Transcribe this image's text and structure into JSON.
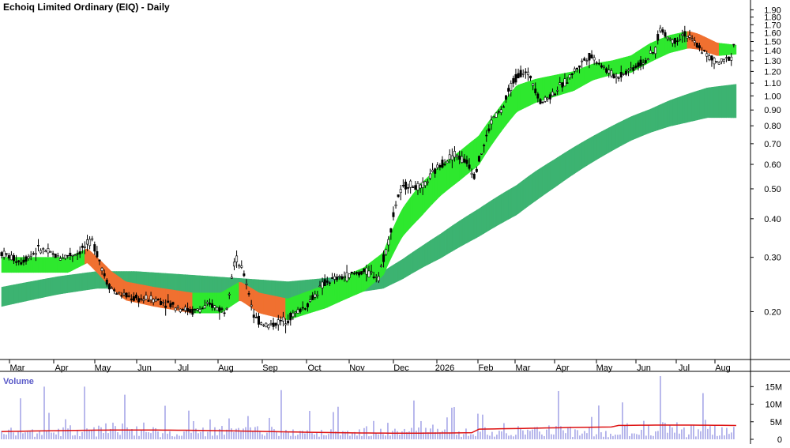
{
  "chart_data": {
    "type": "candlestick",
    "title": "Echoiq Limited Ordinary (EIQ) - Daily",
    "price_axis": {
      "ticks": [
        "0.20",
        "0.30",
        "0.40",
        "0.50",
        "0.60",
        "0.70",
        "0.80",
        "0.90",
        "1.00",
        "1.10",
        "1.20",
        "1.30",
        "1.40",
        "1.50",
        "1.60",
        "1.70",
        "1.80",
        "1.90"
      ],
      "ylim": [
        0.14,
        1.95
      ],
      "scale": "log"
    },
    "time_axis": {
      "ticks": [
        "Mar",
        "Apr",
        "May",
        "Jun",
        "Jul",
        "Aug",
        "Sep",
        "Oct",
        "Nov",
        "Dec",
        "2026",
        "Feb",
        "Mar",
        "Apr",
        "May",
        "Jun",
        "Jul",
        "Aug"
      ]
    },
    "volume": {
      "label": "Volume",
      "ticks": [
        "15M",
        "10M",
        "5M",
        "0"
      ],
      "ylim": [
        0,
        18
      ],
      "unit": "M"
    },
    "price_path": [
      [
        0,
        0.31
      ],
      [
        2,
        0.29
      ],
      [
        4,
        0.32
      ],
      [
        6,
        0.3
      ],
      [
        8,
        0.31
      ],
      [
        9.5,
        0.34
      ],
      [
        10,
        0.31
      ],
      [
        11,
        0.25
      ],
      [
        12,
        0.23
      ],
      [
        14,
        0.22
      ],
      [
        16,
        0.22
      ],
      [
        18,
        0.21
      ],
      [
        20,
        0.2
      ],
      [
        22,
        0.21
      ],
      [
        23.5,
        0.2
      ],
      [
        24.5,
        0.3
      ],
      [
        25.5,
        0.26
      ],
      [
        26.5,
        0.19
      ],
      [
        28,
        0.18
      ],
      [
        30,
        0.19
      ],
      [
        32,
        0.21
      ],
      [
        34,
        0.25
      ],
      [
        36,
        0.26
      ],
      [
        38,
        0.27
      ],
      [
        39.5,
        0.26
      ],
      [
        40.5,
        0.33
      ],
      [
        41.5,
        0.47
      ],
      [
        42.5,
        0.52
      ],
      [
        44,
        0.5
      ],
      [
        46,
        0.6
      ],
      [
        47.5,
        0.65
      ],
      [
        49,
        0.6
      ],
      [
        49.5,
        0.55
      ],
      [
        50.5,
        0.68
      ],
      [
        51.5,
        0.85
      ],
      [
        52.5,
        0.9
      ],
      [
        53.5,
        1.1
      ],
      [
        54.5,
        1.2
      ],
      [
        55.5,
        1.15
      ],
      [
        56.5,
        0.95
      ],
      [
        57.5,
        1.0
      ],
      [
        59,
        1.1
      ],
      [
        60.5,
        1.25
      ],
      [
        61.5,
        1.35
      ],
      [
        62.5,
        1.3
      ],
      [
        63.5,
        1.2
      ],
      [
        64.5,
        1.15
      ],
      [
        65.5,
        1.2
      ],
      [
        66.5,
        1.25
      ],
      [
        67.5,
        1.3
      ],
      [
        68.5,
        1.4
      ],
      [
        69,
        1.65
      ],
      [
        69.8,
        1.55
      ],
      [
        70.5,
        1.5
      ],
      [
        71.5,
        1.6
      ],
      [
        72.5,
        1.5
      ],
      [
        73.5,
        1.4
      ],
      [
        74.5,
        1.3
      ],
      [
        75.5,
        1.28
      ],
      [
        76.5,
        1.35
      ],
      [
        77,
        1.58
      ]
    ],
    "ema_short_path": [
      [
        0,
        0.28
      ],
      [
        4,
        0.28
      ],
      [
        7,
        0.28
      ],
      [
        9,
        0.3
      ],
      [
        10,
        0.28
      ],
      [
        11.5,
        0.25
      ],
      [
        13,
        0.23
      ],
      [
        16,
        0.22
      ],
      [
        20,
        0.21
      ],
      [
        23,
        0.21
      ],
      [
        25,
        0.23
      ],
      [
        27,
        0.21
      ],
      [
        30,
        0.2
      ],
      [
        34,
        0.22
      ],
      [
        38,
        0.25
      ],
      [
        40,
        0.28
      ],
      [
        42,
        0.38
      ],
      [
        44,
        0.45
      ],
      [
        46,
        0.52
      ],
      [
        48,
        0.58
      ],
      [
        50,
        0.65
      ],
      [
        52,
        0.8
      ],
      [
        54,
        0.96
      ],
      [
        56,
        1.02
      ],
      [
        58,
        1.06
      ],
      [
        60,
        1.1
      ],
      [
        62,
        1.18
      ],
      [
        64,
        1.22
      ],
      [
        66,
        1.25
      ],
      [
        68,
        1.36
      ],
      [
        70,
        1.45
      ],
      [
        72,
        1.5
      ],
      [
        73,
        1.48
      ],
      [
        75,
        1.4
      ],
      [
        77,
        1.4
      ]
    ],
    "ema_short_width": [
      [
        0,
        0.02
      ],
      [
        10,
        0.02
      ],
      [
        30,
        0.02
      ],
      [
        40,
        0.03
      ],
      [
        44,
        0.07
      ],
      [
        48,
        0.08
      ],
      [
        52,
        0.1
      ],
      [
        54,
        0.12
      ],
      [
        60,
        0.1
      ],
      [
        64,
        0.08
      ],
      [
        68,
        0.12
      ],
      [
        72,
        0.12
      ],
      [
        77,
        0.06
      ]
    ],
    "ema_long_path": [
      [
        0,
        0.22
      ],
      [
        6,
        0.24
      ],
      [
        10,
        0.25
      ],
      [
        14,
        0.25
      ],
      [
        22,
        0.24
      ],
      [
        30,
        0.23
      ],
      [
        36,
        0.24
      ],
      [
        40,
        0.25
      ],
      [
        42,
        0.27
      ],
      [
        46,
        0.32
      ],
      [
        50,
        0.38
      ],
      [
        54,
        0.45
      ],
      [
        58,
        0.55
      ],
      [
        62,
        0.66
      ],
      [
        66,
        0.77
      ],
      [
        70,
        0.86
      ],
      [
        74,
        0.93
      ],
      [
        77,
        0.94
      ]
    ],
    "ema_long_width": [
      [
        0,
        0.02
      ],
      [
        20,
        0.02
      ],
      [
        40,
        0.02
      ],
      [
        44,
        0.03
      ],
      [
        50,
        0.05
      ],
      [
        56,
        0.07
      ],
      [
        62,
        0.08
      ],
      [
        68,
        0.09
      ],
      [
        72,
        0.12
      ],
      [
        77,
        0.15
      ]
    ],
    "volume_seed": [
      2,
      3,
      2,
      4,
      3,
      6,
      2,
      3,
      15,
      3,
      2,
      2,
      2,
      3,
      1,
      2,
      2,
      3,
      14,
      4,
      10,
      3,
      2,
      2,
      3,
      2,
      3,
      5,
      3,
      4,
      2,
      3,
      4,
      2,
      3,
      9,
      6,
      3,
      4,
      3,
      2,
      5,
      3,
      6,
      4,
      2,
      3,
      4,
      5,
      2,
      3,
      4,
      18,
      6,
      4,
      5,
      3,
      4,
      2,
      3,
      4
    ],
    "colors": {
      "candle": "#000000",
      "short_band_up": "#2ee82e",
      "short_band_down": "#f07030",
      "long_band": "#3cb371",
      "volume_bar": "#8a8ae0",
      "volume_avg": "#dd1111",
      "grid_axis": "#000000"
    }
  }
}
